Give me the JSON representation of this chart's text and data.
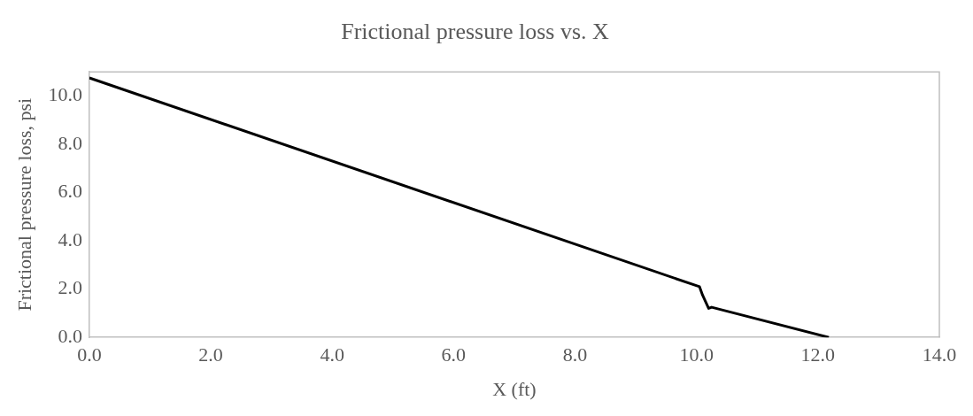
{
  "chart_data": {
    "type": "line",
    "title": "Frictional pressure loss vs. X",
    "xlabel": "X (ft)",
    "ylabel": "Frictional pressure loss, psi",
    "x": [
      0,
      10.05,
      10.1,
      10.2,
      10.25,
      12.18
    ],
    "values": [
      10.75,
      2.1,
      1.75,
      1.2,
      1.25,
      0
    ],
    "color": "#000000",
    "marker": "none",
    "xlim": [
      0,
      14
    ],
    "xticks": [
      {
        "value": 0,
        "label": "0.0"
      },
      {
        "value": 2,
        "label": "2.0"
      },
      {
        "value": 4,
        "label": "4.0"
      },
      {
        "value": 6,
        "label": "6.0"
      },
      {
        "value": 8,
        "label": "8.0"
      },
      {
        "value": 10,
        "label": "10.0"
      },
      {
        "value": 12,
        "label": "12.0"
      },
      {
        "value": 14,
        "label": "14.0"
      }
    ],
    "ylim": [
      0,
      11
    ],
    "yticks": [
      {
        "value": 0,
        "label": "0.0"
      },
      {
        "value": 2,
        "label": "2.0"
      },
      {
        "value": 4,
        "label": "4.0"
      },
      {
        "value": 6,
        "label": "6.0"
      },
      {
        "value": 8,
        "label": "8.0"
      },
      {
        "value": 10,
        "label": "10.0"
      }
    ],
    "grid": false,
    "legend": false
  }
}
